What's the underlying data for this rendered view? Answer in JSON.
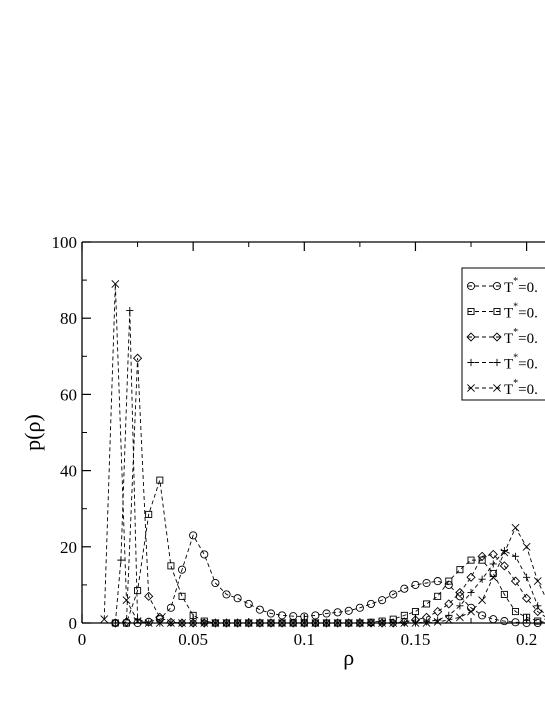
{
  "chart_data": {
    "type": "line",
    "title": "",
    "xlabel": "ρ",
    "ylabel": "p(ρ)",
    "xlim": [
      0,
      0.21
    ],
    "ylim": [
      0,
      100
    ],
    "xticks": [
      0,
      0.05,
      0.1,
      0.15,
      0.2
    ],
    "xtick_labels": [
      "0",
      "0.05",
      "0.1",
      "0.15",
      "0.2"
    ],
    "yticks": [
      0,
      20,
      40,
      60,
      80,
      100
    ],
    "ytick_labels": [
      "0",
      "20",
      "40",
      "60",
      "80",
      "100"
    ],
    "grid": false,
    "legend_position": "top-right",
    "line_style": "dashed",
    "series": [
      {
        "name": "T*=0.",
        "marker": "circle",
        "points": [
          [
            0.015,
            0
          ],
          [
            0.02,
            0
          ],
          [
            0.025,
            0
          ],
          [
            0.03,
            0.3
          ],
          [
            0.035,
            1
          ],
          [
            0.04,
            4
          ],
          [
            0.045,
            14
          ],
          [
            0.05,
            23
          ],
          [
            0.055,
            18
          ],
          [
            0.06,
            10.5
          ],
          [
            0.065,
            7.5
          ],
          [
            0.07,
            6.5
          ],
          [
            0.075,
            5
          ],
          [
            0.08,
            3.5
          ],
          [
            0.085,
            2.5
          ],
          [
            0.09,
            2
          ],
          [
            0.095,
            1.8
          ],
          [
            0.1,
            1.7
          ],
          [
            0.105,
            2
          ],
          [
            0.11,
            2.5
          ],
          [
            0.115,
            2.8
          ],
          [
            0.12,
            3.2
          ],
          [
            0.125,
            4
          ],
          [
            0.13,
            5
          ],
          [
            0.135,
            6
          ],
          [
            0.14,
            7.5
          ],
          [
            0.145,
            9
          ],
          [
            0.15,
            10
          ],
          [
            0.155,
            10.5
          ],
          [
            0.16,
            11
          ],
          [
            0.165,
            10
          ],
          [
            0.17,
            7
          ],
          [
            0.175,
            4
          ],
          [
            0.18,
            2
          ],
          [
            0.185,
            1
          ],
          [
            0.19,
            0.5
          ],
          [
            0.195,
            0.2
          ],
          [
            0.2,
            0
          ],
          [
            0.205,
            0
          ],
          [
            0.21,
            0
          ]
        ]
      },
      {
        "name": "T*=0.",
        "marker": "square",
        "points": [
          [
            0.015,
            0
          ],
          [
            0.02,
            0
          ],
          [
            0.025,
            8.5
          ],
          [
            0.03,
            28.5
          ],
          [
            0.035,
            37.5
          ],
          [
            0.04,
            15
          ],
          [
            0.045,
            7
          ],
          [
            0.05,
            2
          ],
          [
            0.055,
            0.5
          ],
          [
            0.06,
            0
          ],
          [
            0.065,
            0
          ],
          [
            0.07,
            0
          ],
          [
            0.075,
            0
          ],
          [
            0.08,
            0
          ],
          [
            0.085,
            0
          ],
          [
            0.09,
            0
          ],
          [
            0.095,
            0
          ],
          [
            0.1,
            0
          ],
          [
            0.105,
            0
          ],
          [
            0.11,
            0
          ],
          [
            0.115,
            0
          ],
          [
            0.12,
            0
          ],
          [
            0.125,
            0
          ],
          [
            0.13,
            0.2
          ],
          [
            0.135,
            0.5
          ],
          [
            0.14,
            1
          ],
          [
            0.145,
            2
          ],
          [
            0.15,
            3
          ],
          [
            0.155,
            5
          ],
          [
            0.16,
            7
          ],
          [
            0.165,
            11
          ],
          [
            0.17,
            14
          ],
          [
            0.175,
            16.5
          ],
          [
            0.18,
            16.5
          ],
          [
            0.185,
            13
          ],
          [
            0.19,
            7.5
          ],
          [
            0.195,
            3
          ],
          [
            0.2,
            1.5
          ],
          [
            0.205,
            0.5
          ],
          [
            0.21,
            0
          ]
        ]
      },
      {
        "name": "T*=0.",
        "marker": "diamond",
        "points": [
          [
            0.015,
            0
          ],
          [
            0.02,
            0.3
          ],
          [
            0.025,
            69.5
          ],
          [
            0.03,
            7
          ],
          [
            0.035,
            1.5
          ],
          [
            0.04,
            0.2
          ],
          [
            0.045,
            0
          ],
          [
            0.05,
            0
          ],
          [
            0.055,
            0
          ],
          [
            0.06,
            0
          ],
          [
            0.065,
            0
          ],
          [
            0.07,
            0
          ],
          [
            0.075,
            0
          ],
          [
            0.08,
            0
          ],
          [
            0.085,
            0
          ],
          [
            0.09,
            0
          ],
          [
            0.095,
            0
          ],
          [
            0.1,
            0
          ],
          [
            0.105,
            0
          ],
          [
            0.11,
            0
          ],
          [
            0.115,
            0
          ],
          [
            0.12,
            0
          ],
          [
            0.125,
            0
          ],
          [
            0.13,
            0
          ],
          [
            0.135,
            0
          ],
          [
            0.14,
            0
          ],
          [
            0.145,
            0.3
          ],
          [
            0.15,
            0.8
          ],
          [
            0.155,
            1.5
          ],
          [
            0.16,
            3
          ],
          [
            0.165,
            5
          ],
          [
            0.17,
            8
          ],
          [
            0.175,
            12
          ],
          [
            0.18,
            17.5
          ],
          [
            0.185,
            18
          ],
          [
            0.19,
            15
          ],
          [
            0.195,
            11
          ],
          [
            0.2,
            6.5
          ],
          [
            0.205,
            3
          ],
          [
            0.21,
            1
          ]
        ]
      },
      {
        "name": "T*=0.",
        "marker": "plus",
        "points": [
          [
            0.015,
            0
          ],
          [
            0.0175,
            16.5
          ],
          [
            0.0215,
            82
          ],
          [
            0.025,
            1
          ],
          [
            0.03,
            0
          ],
          [
            0.035,
            0
          ],
          [
            0.04,
            0
          ],
          [
            0.045,
            0
          ],
          [
            0.05,
            0
          ],
          [
            0.055,
            0
          ],
          [
            0.06,
            0
          ],
          [
            0.065,
            0
          ],
          [
            0.07,
            0
          ],
          [
            0.075,
            0
          ],
          [
            0.08,
            0
          ],
          [
            0.085,
            0
          ],
          [
            0.09,
            0
          ],
          [
            0.095,
            0
          ],
          [
            0.1,
            0
          ],
          [
            0.105,
            0
          ],
          [
            0.11,
            0
          ],
          [
            0.115,
            0
          ],
          [
            0.12,
            0
          ],
          [
            0.125,
            0
          ],
          [
            0.13,
            0
          ],
          [
            0.135,
            0
          ],
          [
            0.14,
            0
          ],
          [
            0.145,
            0
          ],
          [
            0.15,
            0
          ],
          [
            0.155,
            0.3
          ],
          [
            0.16,
            0.8
          ],
          [
            0.165,
            2
          ],
          [
            0.17,
            4.5
          ],
          [
            0.175,
            8
          ],
          [
            0.18,
            11.5
          ],
          [
            0.185,
            15.5
          ],
          [
            0.19,
            19
          ],
          [
            0.195,
            17.5
          ],
          [
            0.2,
            12
          ],
          [
            0.205,
            4.5
          ],
          [
            0.21,
            1
          ]
        ]
      },
      {
        "name": "T*=0.",
        "marker": "cross",
        "points": [
          [
            0.01,
            1
          ],
          [
            0.015,
            89
          ],
          [
            0.02,
            6
          ],
          [
            0.025,
            0.5
          ],
          [
            0.03,
            0
          ],
          [
            0.035,
            0
          ],
          [
            0.04,
            0
          ],
          [
            0.045,
            0
          ],
          [
            0.05,
            0
          ],
          [
            0.055,
            0
          ],
          [
            0.06,
            0
          ],
          [
            0.065,
            0
          ],
          [
            0.07,
            0
          ],
          [
            0.075,
            0
          ],
          [
            0.08,
            0
          ],
          [
            0.085,
            0
          ],
          [
            0.09,
            0
          ],
          [
            0.095,
            0
          ],
          [
            0.1,
            0
          ],
          [
            0.105,
            0
          ],
          [
            0.11,
            0
          ],
          [
            0.115,
            0
          ],
          [
            0.12,
            0
          ],
          [
            0.125,
            0
          ],
          [
            0.13,
            0
          ],
          [
            0.135,
            0
          ],
          [
            0.14,
            0
          ],
          [
            0.145,
            0
          ],
          [
            0.15,
            0
          ],
          [
            0.155,
            0
          ],
          [
            0.16,
            0.3
          ],
          [
            0.165,
            0.8
          ],
          [
            0.17,
            1.5
          ],
          [
            0.175,
            3
          ],
          [
            0.18,
            6
          ],
          [
            0.185,
            12
          ],
          [
            0.19,
            18.5
          ],
          [
            0.195,
            25
          ],
          [
            0.2,
            20
          ],
          [
            0.205,
            11
          ],
          [
            0.21,
            5
          ]
        ]
      }
    ]
  }
}
